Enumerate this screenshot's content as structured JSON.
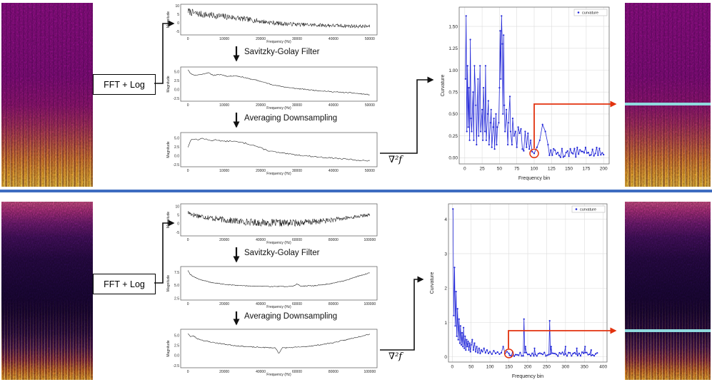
{
  "colors": {
    "divider": "#3e6dc0",
    "accent_red": "#e2320e",
    "accent_cyan": "#8fd9de",
    "curve_blue": "#2328d8"
  },
  "rows": [
    {
      "fft_label": "FFT + Log",
      "sg_label": "Savitzky-Golay Filter",
      "avg_label": "Averaging Downsampling",
      "laplacian_label": "∇²f"
    },
    {
      "fft_label": "FFT + Log",
      "sg_label": "Savitzky-Golay Filter",
      "avg_label": "Averaging Downsampling",
      "laplacian_label": "∇²f"
    }
  ],
  "chart_data": [
    {
      "id": "r1p1",
      "kind": "small",
      "type": "line",
      "color": "#111111",
      "ylabel": "Magnitude",
      "xlabel": "Frequency (Hz)",
      "xlim": [
        -2000,
        52000
      ],
      "ylim": [
        -7,
        11
      ],
      "xtick_vals": [
        0,
        10000,
        20000,
        30000,
        40000,
        50000
      ],
      "xtick_labels": [
        "0",
        "10000",
        "20000",
        "30000",
        "40000",
        "50000"
      ],
      "ytick_vals": [
        10,
        5,
        0,
        -5
      ],
      "ytick_labels": [
        "10",
        "5",
        "0",
        "-5"
      ],
      "grid": false,
      "markers": false,
      "n": 380,
      "seed": 7,
      "envelope": {
        "x": [
          0,
          1500,
          4000,
          8000,
          12000,
          16000,
          20000,
          23000,
          26000,
          30000,
          35000,
          40000,
          45000,
          50000
        ],
        "y": [
          7,
          5.8,
          5,
          4.2,
          3.4,
          2.2,
          1,
          0.2,
          -0.4,
          -0.8,
          -1.2,
          -1.5,
          -1.8,
          -2
        ]
      },
      "noise_env": {
        "x": [
          0,
          10000,
          20000,
          30000,
          50000
        ],
        "y": [
          2.1,
          1.9,
          1.4,
          1.1,
          1.0
        ]
      }
    },
    {
      "id": "r1p2",
      "kind": "small",
      "type": "line",
      "color": "#111111",
      "ylabel": "Magnitude",
      "xlabel": "Frequency (Hz)",
      "xlim": [
        -2000,
        52000
      ],
      "ylim": [
        -3.2,
        6.3
      ],
      "xtick_vals": [
        0,
        10000,
        20000,
        30000,
        40000,
        50000
      ],
      "xtick_labels": [
        "0",
        "10000",
        "20000",
        "30000",
        "40000",
        "50000"
      ],
      "ytick_vals": [
        5,
        2.5,
        0,
        -2.5
      ],
      "ytick_labels": [
        "5.0",
        "2.5",
        "0.0",
        "-2.5"
      ],
      "grid": false,
      "markers": false,
      "n": 260,
      "seed": 11,
      "noise": 0.12,
      "envelope": {
        "x": [
          0,
          800,
          2000,
          4000,
          5500,
          7000,
          9000,
          11000,
          13000,
          15000,
          17000,
          19000,
          21000,
          24000,
          27000,
          30000,
          35000,
          40000,
          45000,
          50000
        ],
        "y": [
          5.6,
          4.4,
          4.0,
          4.3,
          4.7,
          4.0,
          4.2,
          3.7,
          3.9,
          3.5,
          3.0,
          2.6,
          2.0,
          1.2,
          0.7,
          0.3,
          -0.2,
          -0.6,
          -0.9,
          -1.4
        ]
      }
    },
    {
      "id": "r1p3",
      "kind": "small",
      "type": "line",
      "color": "#111111",
      "ylabel": "Magnitude",
      "xlabel": "Frequency (Hz)",
      "xlim": [
        -2000,
        52000
      ],
      "ylim": [
        -3,
        6.5
      ],
      "xtick_vals": [
        0,
        10000,
        20000,
        30000,
        40000,
        50000
      ],
      "xtick_labels": [
        "0",
        "10000",
        "20000",
        "30000",
        "40000",
        "50000"
      ],
      "ytick_vals": [
        5,
        2.5,
        0,
        -2.5
      ],
      "ytick_labels": [
        "5.0",
        "2.5",
        "0.0",
        "-2.5"
      ],
      "grid": false,
      "markers": false,
      "n": 140,
      "seed": 13,
      "noise": 0.18,
      "envelope": {
        "x": [
          0,
          1000,
          2500,
          4000,
          6000,
          8000,
          10000,
          12000,
          14000,
          16000,
          18000,
          20000,
          22000,
          25000,
          28000,
          32000,
          36000,
          40000,
          45000,
          50000
        ],
        "y": [
          2.5,
          4.8,
          4.5,
          4.9,
          4.3,
          4.5,
          4.0,
          4.2,
          3.8,
          3.5,
          3.0,
          2.2,
          1.5,
          0.9,
          0.5,
          0.1,
          -0.3,
          -0.6,
          -1.0,
          -1.4
        ]
      }
    },
    {
      "id": "r1cv",
      "kind": "big",
      "type": "scatter-line",
      "color": "#2328d8",
      "ylabel": "Curvature",
      "xlabel": "Frequency bin",
      "legend": "curvature",
      "xlim": [
        -8,
        208
      ],
      "ylim": [
        -0.07,
        1.72
      ],
      "xtick_vals": [
        0,
        25,
        50,
        75,
        100,
        125,
        150,
        175,
        200
      ],
      "xtick_labels": [
        "0",
        "25",
        "50",
        "75",
        "100",
        "125",
        "150",
        "175",
        "200"
      ],
      "ytick_vals": [
        0,
        0.25,
        0.5,
        0.75,
        1,
        1.25,
        1.5
      ],
      "ytick_labels": [
        "0.00",
        "0.25",
        "0.50",
        "0.75",
        "1.00",
        "1.25",
        "1.50"
      ],
      "grid": true,
      "markers": true,
      "points": [
        [
          1,
          0.9
        ],
        [
          2,
          1.62
        ],
        [
          3,
          0.3
        ],
        [
          4,
          1.05
        ],
        [
          5,
          0.35
        ],
        [
          6,
          0.8
        ],
        [
          7,
          0.2
        ],
        [
          8,
          1.35
        ],
        [
          9,
          0.45
        ],
        [
          10,
          0.3
        ],
        [
          12,
          0.75
        ],
        [
          13,
          0.2
        ],
        [
          14,
          1.05
        ],
        [
          16,
          0.6
        ],
        [
          17,
          0.15
        ],
        [
          19,
          0.9
        ],
        [
          20,
          0.25
        ],
        [
          22,
          1.05
        ],
        [
          23,
          0.3
        ],
        [
          25,
          0.55
        ],
        [
          26,
          0.2
        ],
        [
          27,
          0.8
        ],
        [
          29,
          0.3
        ],
        [
          30,
          1.05
        ],
        [
          31,
          0.2
        ],
        [
          33,
          0.5
        ],
        [
          34,
          0.65
        ],
        [
          35,
          0.15
        ],
        [
          37,
          0.4
        ],
        [
          38,
          0.55
        ],
        [
          39,
          0.12
        ],
        [
          41,
          0.35
        ],
        [
          42,
          0.45
        ],
        [
          43,
          0.1
        ],
        [
          45,
          0.5
        ],
        [
          46,
          0.15
        ],
        [
          47,
          0.35
        ],
        [
          49,
          0.4
        ],
        [
          50,
          0.8
        ],
        [
          51,
          1.45
        ],
        [
          52,
          0.9
        ],
        [
          53,
          1.62
        ],
        [
          54,
          1.3
        ],
        [
          55,
          0.5
        ],
        [
          56,
          1.4
        ],
        [
          57,
          0.6
        ],
        [
          58,
          0.3
        ],
        [
          60,
          0.55
        ],
        [
          62,
          0.15
        ],
        [
          63,
          0.4
        ],
        [
          65,
          0.7
        ],
        [
          66,
          0.3
        ],
        [
          68,
          0.15
        ],
        [
          69,
          0.45
        ],
        [
          71,
          0.25
        ],
        [
          73,
          0.3
        ],
        [
          75,
          0.12
        ],
        [
          77,
          0.35
        ],
        [
          79,
          0.28
        ],
        [
          81,
          0.33
        ],
        [
          83,
          0.1
        ],
        [
          85,
          0.08
        ],
        [
          87,
          0.3
        ],
        [
          89,
          0.12
        ],
        [
          91,
          0.28
        ],
        [
          93,
          0.1
        ],
        [
          95,
          0.2
        ],
        [
          97,
          0.07
        ],
        [
          100,
          0.05
        ],
        [
          104,
          0.12
        ],
        [
          108,
          0.2
        ],
        [
          112,
          0.38
        ],
        [
          116,
          0.3
        ],
        [
          120,
          0.15
        ]
      ],
      "baseline": {
        "from": 122,
        "to": 200,
        "step": 2,
        "y": 0.06,
        "jitter": 0.06,
        "seed": 5
      },
      "highlight": {
        "x": 100,
        "y": 0.05
      }
    },
    {
      "id": "r2p1",
      "kind": "small",
      "type": "line",
      "color": "#111111",
      "ylabel": "Magnitude",
      "xlabel": "Frequency (Hz)",
      "xlim": [
        -4000,
        104000
      ],
      "ylim": [
        -7,
        11.5
      ],
      "xtick_vals": [
        0,
        20000,
        40000,
        60000,
        80000,
        100000
      ],
      "xtick_labels": [
        "0",
        "20000",
        "40000",
        "60000",
        "80000",
        "100000"
      ],
      "ytick_vals": [
        10,
        5,
        0,
        -5
      ],
      "ytick_labels": [
        "10",
        "5",
        "0",
        "-5"
      ],
      "grid": false,
      "markers": false,
      "n": 420,
      "seed": 17,
      "envelope": {
        "x": [
          0,
          3000,
          8000,
          15000,
          22000,
          30000,
          40000,
          50000,
          60000,
          68000,
          76000,
          84000,
          92000,
          100000
        ],
        "y": [
          6.5,
          5.2,
          4.2,
          3.0,
          2.0,
          1.2,
          0.6,
          0.4,
          0.6,
          1.0,
          1.8,
          2.8,
          4.0,
          5.2
        ]
      },
      "noise_env": {
        "x": [
          0,
          15000,
          30000,
          50000,
          70000,
          85000,
          100000
        ],
        "y": [
          1.4,
          1.7,
          2.0,
          2.2,
          1.8,
          1.2,
          0.8
        ]
      }
    },
    {
      "id": "r2p2",
      "kind": "small",
      "type": "line",
      "color": "#111111",
      "ylabel": "Magnitude",
      "xlabel": "Frequency (Hz)",
      "xlim": [
        -4000,
        104000
      ],
      "ylim": [
        2.2,
        8.6
      ],
      "xtick_vals": [
        0,
        20000,
        40000,
        60000,
        80000,
        100000
      ],
      "xtick_labels": [
        "0",
        "20000",
        "40000",
        "60000",
        "80000",
        "100000"
      ],
      "ytick_vals": [
        7.5,
        5,
        2.5
      ],
      "ytick_labels": [
        "7.5",
        "5.0",
        "2.5"
      ],
      "grid": false,
      "markers": false,
      "n": 300,
      "seed": 19,
      "noise": 0.07,
      "envelope": {
        "x": [
          0,
          1000,
          2500,
          4000,
          6000,
          9000,
          12000,
          16000,
          20000,
          25000,
          30000,
          38000,
          46000,
          54000,
          58000,
          60000,
          62000,
          70000,
          78000,
          86000,
          94000,
          100000
        ],
        "y": [
          7.9,
          7.2,
          6.8,
          6.5,
          6.2,
          5.9,
          5.6,
          5.4,
          5.2,
          5.05,
          4.95,
          4.85,
          4.8,
          4.8,
          4.85,
          5.3,
          4.85,
          4.95,
          5.3,
          5.9,
          6.8,
          7.4
        ]
      }
    },
    {
      "id": "r2p3",
      "kind": "small",
      "type": "line",
      "color": "#111111",
      "ylabel": "Magnitude",
      "xlabel": "Frequency (Hz)",
      "xlim": [
        -4000,
        104000
      ],
      "ylim": [
        -3,
        6.5
      ],
      "xtick_vals": [
        0,
        20000,
        40000,
        60000,
        80000,
        100000
      ],
      "xtick_labels": [
        "0",
        "20000",
        "40000",
        "60000",
        "80000",
        "100000"
      ],
      "ytick_vals": [
        5,
        2.5,
        0,
        -2.5
      ],
      "ytick_labels": [
        "5.0",
        "2.5",
        "0.0",
        "-2.5"
      ],
      "grid": false,
      "markers": false,
      "n": 220,
      "seed": 23,
      "noise": 0.12,
      "envelope": {
        "x": [
          0,
          1500,
          3000,
          5000,
          8000,
          12000,
          16000,
          20000,
          25000,
          30000,
          36000,
          42000,
          48000,
          49500,
          50000,
          50500,
          52000,
          58000,
          64000,
          72000,
          80000,
          88000,
          95000,
          100000
        ],
        "y": [
          5.5,
          4.6,
          4.9,
          4.2,
          3.8,
          3.4,
          3.1,
          2.8,
          2.5,
          2.3,
          2.1,
          2.0,
          1.9,
          1.0,
          0.4,
          1.0,
          1.9,
          2.0,
          2.2,
          2.6,
          3.2,
          4.0,
          4.8,
          5.3
        ]
      }
    },
    {
      "id": "r2cv",
      "kind": "big",
      "type": "scatter-line",
      "color": "#2328d8",
      "ylabel": "Curvature",
      "xlabel": "Frequency bin",
      "legend": "curvature",
      "xlim": [
        -10,
        410
      ],
      "ylim": [
        -0.15,
        4.45
      ],
      "xtick_vals": [
        0,
        50,
        100,
        150,
        200,
        250,
        300,
        350,
        400
      ],
      "xtick_labels": [
        "0",
        "50",
        "100",
        "150",
        "200",
        "250",
        "300",
        "350",
        "400"
      ],
      "ytick_vals": [
        0,
        1,
        2,
        3,
        4
      ],
      "ytick_labels": [
        "0",
        "1",
        "2",
        "3",
        "4"
      ],
      "grid": true,
      "markers": true,
      "points": [
        [
          2,
          4.3
        ],
        [
          4,
          1.2
        ],
        [
          6,
          2.6
        ],
        [
          8,
          0.9
        ],
        [
          10,
          1.9
        ],
        [
          12,
          0.6
        ],
        [
          14,
          1.4
        ],
        [
          16,
          0.5
        ],
        [
          18,
          1.1
        ],
        [
          20,
          0.4
        ],
        [
          22,
          0.9
        ],
        [
          24,
          0.35
        ],
        [
          26,
          0.7
        ],
        [
          28,
          0.3
        ],
        [
          30,
          0.85
        ],
        [
          32,
          0.25
        ],
        [
          34,
          0.6
        ],
        [
          36,
          0.2
        ],
        [
          38,
          0.5
        ],
        [
          40,
          0.3
        ],
        [
          42,
          0.45
        ],
        [
          44,
          0.2
        ],
        [
          46,
          0.4
        ],
        [
          48,
          0.15
        ],
        [
          50,
          0.35
        ],
        [
          53,
          0.5
        ],
        [
          56,
          0.2
        ],
        [
          59,
          0.4
        ],
        [
          62,
          0.15
        ],
        [
          65,
          0.3
        ],
        [
          68,
          0.12
        ],
        [
          71,
          0.25
        ],
        [
          74,
          0.1
        ],
        [
          77,
          0.2
        ],
        [
          80,
          0.15
        ],
        [
          84,
          0.25
        ],
        [
          88,
          0.12
        ],
        [
          92,
          0.2
        ],
        [
          96,
          0.1
        ],
        [
          100,
          0.15
        ],
        [
          105,
          0.08
        ],
        [
          110,
          0.18
        ],
        [
          115,
          0.1
        ],
        [
          120,
          0.14
        ],
        [
          125,
          0.08
        ],
        [
          130,
          0.12
        ],
        [
          135,
          0.3
        ],
        [
          140,
          0.1
        ],
        [
          145,
          0.15
        ],
        [
          150,
          0.1
        ],
        [
          190,
          1.1
        ],
        [
          194,
          0.3
        ],
        [
          218,
          0.25
        ],
        [
          258,
          1.05
        ],
        [
          262,
          0.3
        ],
        [
          300,
          0.3
        ],
        [
          330,
          0.25
        ],
        [
          352,
          0.3
        ],
        [
          368,
          0.2
        ]
      ],
      "baseline": {
        "from": 152,
        "to": 385,
        "step": 4,
        "y": 0.08,
        "jitter": 0.06,
        "seed": 9
      },
      "highlight": {
        "x": 150,
        "y": 0.1
      }
    }
  ]
}
